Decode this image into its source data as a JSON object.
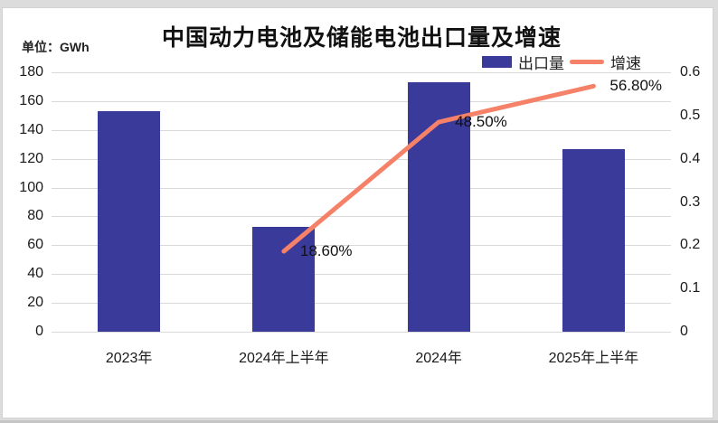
{
  "header": {
    "title": "中国动力电池及储能电池出口量及增速",
    "unit_label": "单位：GWh"
  },
  "legend": {
    "items": [
      {
        "label": "出口量",
        "type": "bar"
      },
      {
        "label": "增速",
        "type": "line"
      }
    ]
  },
  "colors": {
    "bar": "#3a3a9a",
    "line": "#f58169",
    "gridline": "#d9d9d9"
  },
  "chart_data": {
    "type": "bar",
    "title": "中国动力电池及储能电池出口量及增速",
    "unit": "单位：GWh",
    "categories": [
      "2023年",
      "2024年上半年",
      "2024年",
      "2025年上半年"
    ],
    "series": [
      {
        "name": "出口量",
        "type": "bar",
        "axis": "left",
        "color": "#3a3a9a",
        "values": [
          153,
          73,
          173,
          127
        ]
      },
      {
        "name": "增速",
        "type": "line",
        "axis": "right",
        "color": "#f58169",
        "values": [
          null,
          0.186,
          0.485,
          0.568
        ],
        "labels": [
          null,
          "18.60%",
          "48.50%",
          "56.80%"
        ]
      }
    ],
    "left_axis": {
      "ticks": [
        0,
        20,
        40,
        60,
        80,
        100,
        120,
        140,
        160,
        180
      ],
      "min": 0,
      "max": 180
    },
    "right_axis": {
      "ticks": [
        0,
        0.1,
        0.2,
        0.3,
        0.4,
        0.5,
        0.6
      ],
      "min": 0,
      "max": 0.6
    },
    "grid": true,
    "legend_position": "top-right"
  }
}
